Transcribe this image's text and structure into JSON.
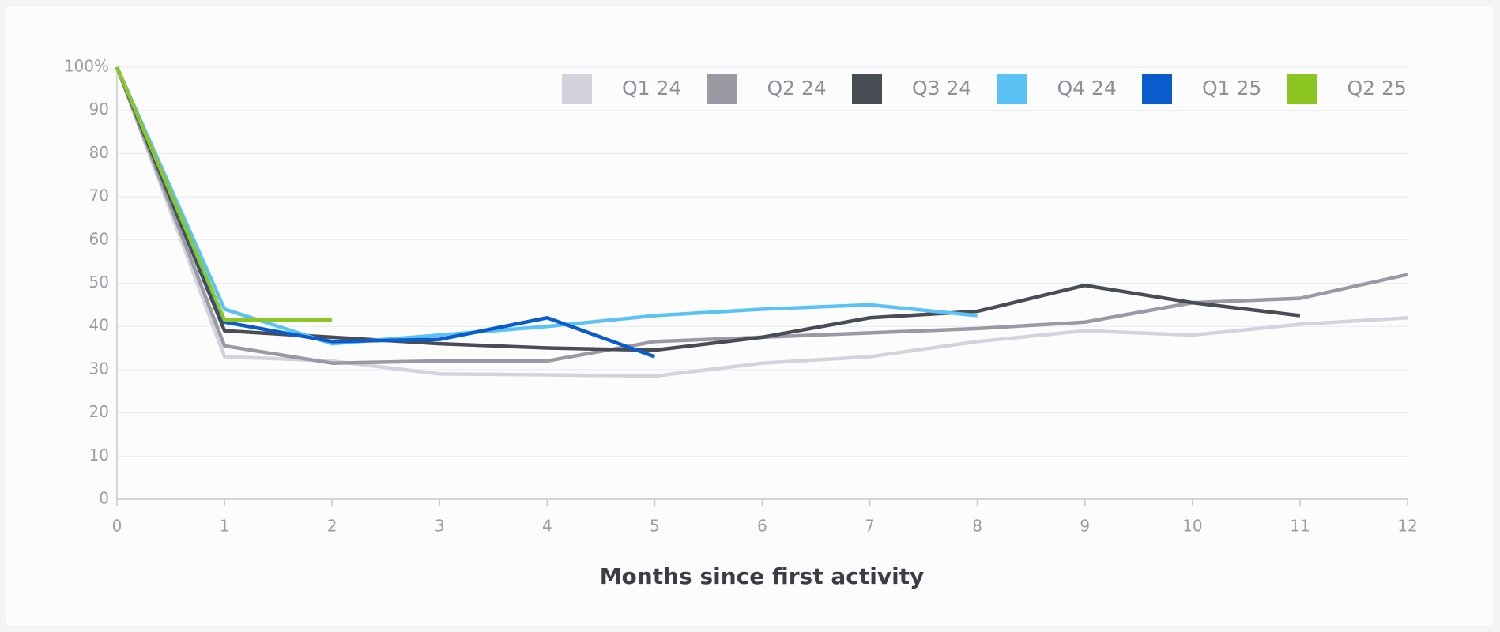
{
  "chart_data": {
    "type": "line",
    "xlabel": "Months since first activity",
    "xlim": [
      0,
      12
    ],
    "xticks": [
      0,
      1,
      2,
      3,
      4,
      5,
      6,
      7,
      8,
      9,
      10,
      11,
      12
    ],
    "ylim": [
      0,
      100
    ],
    "yticks": [
      0,
      10,
      20,
      30,
      40,
      50,
      60,
      70,
      80,
      90,
      {
        "value": 100,
        "label": "100%"
      }
    ],
    "grid": true,
    "legend": "top-right",
    "x": [
      0,
      1,
      2,
      3,
      4,
      5,
      6,
      7,
      8,
      9,
      10,
      11,
      12
    ],
    "series": [
      {
        "name": "Q1 24",
        "color": "#d3d3dd",
        "values": [
          100,
          33,
          32,
          29,
          28.8,
          28.5,
          31.5,
          33,
          36.5,
          39,
          38,
          40.5,
          42
        ]
      },
      {
        "name": "Q2 24",
        "color": "#9a9aa4",
        "values": [
          100,
          35.5,
          31.5,
          32,
          32,
          36.5,
          37.5,
          38.5,
          39.5,
          41,
          45.5,
          46.5,
          52
        ]
      },
      {
        "name": "Q3 24",
        "color": "#474c55",
        "values": [
          100,
          39,
          37.5,
          36,
          35,
          34.5,
          37.5,
          42,
          43.5,
          49.5,
          45.5,
          42.5,
          null
        ]
      },
      {
        "name": "Q4 24",
        "color": "#5bc2f5",
        "values": [
          100,
          44,
          36,
          38,
          40,
          42.5,
          44,
          45,
          42.5,
          null,
          null,
          null,
          null
        ]
      },
      {
        "name": "Q1 25",
        "color": "#0a5ccc",
        "values": [
          100,
          41,
          36.5,
          37,
          42,
          33,
          null,
          null,
          null,
          null,
          null,
          null,
          null
        ]
      },
      {
        "name": "Q2 25",
        "color": "#8dc621",
        "values": [
          100,
          41.5,
          41.5,
          null,
          null,
          null,
          null,
          null,
          null,
          null,
          null,
          null,
          null
        ]
      }
    ]
  }
}
